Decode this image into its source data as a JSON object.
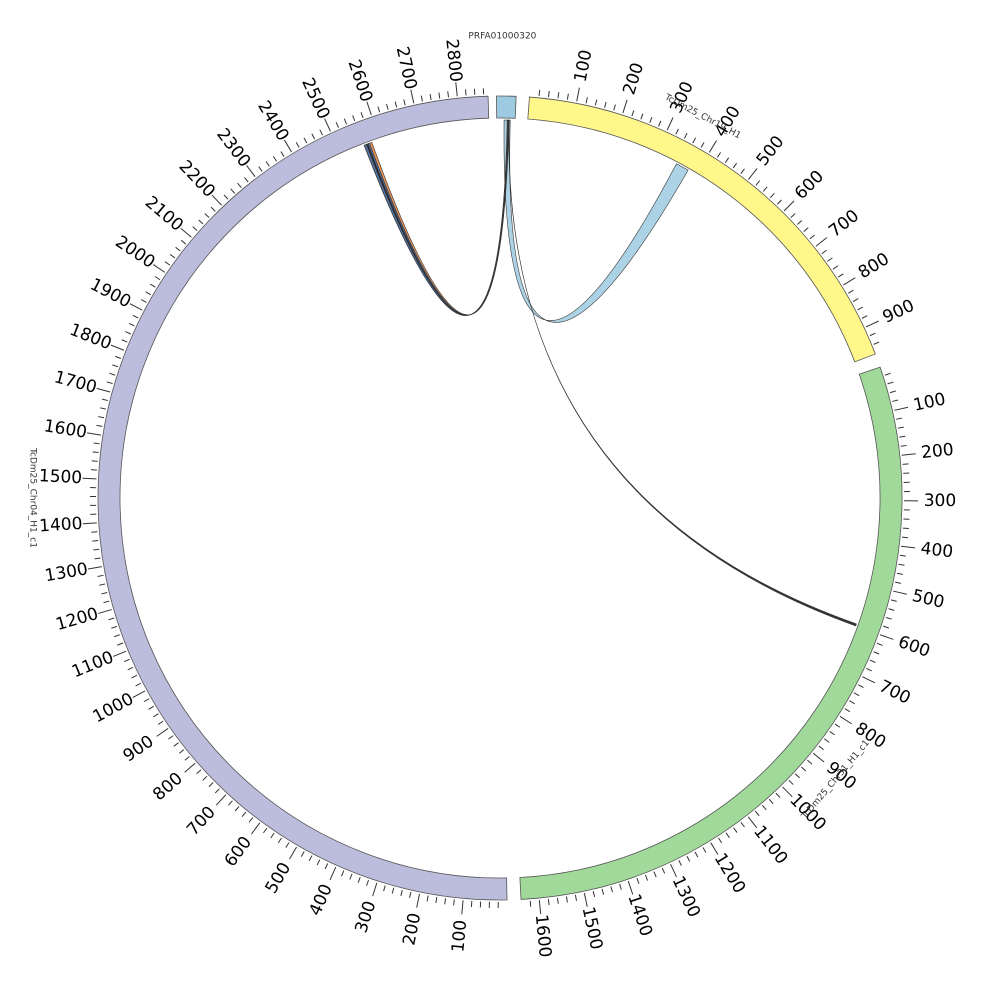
{
  "diagram": {
    "type": "circos",
    "segments": [
      {
        "name": "PRFA01000320",
        "length": 30,
        "color": "#9ecae1",
        "labels": []
      },
      {
        "name": "TcDm25_Chr19_H1",
        "length": 960,
        "color": "#fff78a",
        "labels": [
          "100",
          "200",
          "300",
          "400",
          "500",
          "600",
          "700",
          "800",
          "900"
        ]
      },
      {
        "name": "TcDm25_Chr31_H1_c1",
        "length": 1640,
        "color": "#a1d99b",
        "labels": [
          "100",
          "200",
          "300",
          "400",
          "500",
          "600",
          "700",
          "800",
          "900",
          "1000",
          "1100",
          "1200",
          "1300",
          "1400",
          "1500",
          "1600"
        ]
      },
      {
        "name": "TcDm25_Chr04_H1_c1",
        "length": 2870,
        "color": "#bcbddc",
        "labels": [
          "100",
          "200",
          "300",
          "400",
          "500",
          "600",
          "700",
          "800",
          "900",
          "1000",
          "1100",
          "1200",
          "1300",
          "1400",
          "1500",
          "1600",
          "1700",
          "1800",
          "1900",
          "2000",
          "2100",
          "2200",
          "2300",
          "2400",
          "2500",
          "2600",
          "2700",
          "2800"
        ]
      }
    ],
    "links": [
      {
        "from": "PRFA01000320",
        "from_range": [
          12,
          22
        ],
        "to": "TcDm25_Chr19_H1",
        "to_range": [
          350,
          380
        ],
        "color": "#9ecae1"
      },
      {
        "from": "PRFA01000320",
        "from_range": [
          17,
          19
        ],
        "to": "TcDm25_Chr04_H1_c1",
        "to_range": [
          2560,
          2580
        ],
        "color": "#e6823c"
      },
      {
        "from": "PRFA01000320",
        "from_range": [
          19,
          20
        ],
        "to": "TcDm25_Chr04_H1_c1",
        "to_range": [
          2560,
          2574
        ],
        "color": "#3a6fb0"
      },
      {
        "from": "PRFA01000320",
        "from_range": [
          18,
          18.5
        ],
        "to": "TcDm25_Chr04_H1_c1",
        "to_range": [
          2566,
          2570
        ],
        "color": "#222222"
      },
      {
        "from": "PRFA01000320",
        "from_range": [
          20,
          20.3
        ],
        "to": "TcDm25_Chr31_H1_c1",
        "to_range": [
          595,
          600
        ],
        "color": "#111111"
      }
    ]
  }
}
